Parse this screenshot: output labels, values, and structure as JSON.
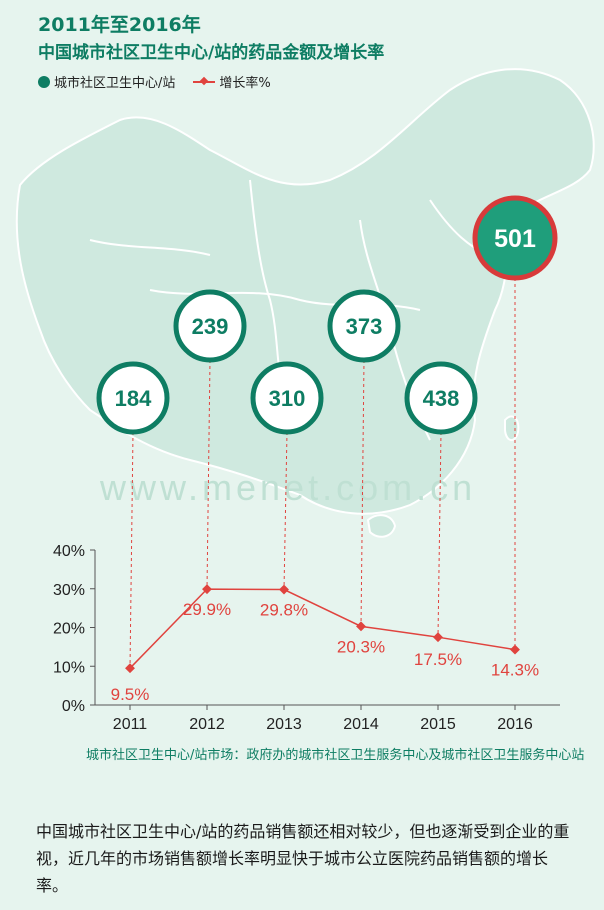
{
  "header": {
    "title": "2011年至2016年",
    "subtitle": "中国城市社区卫生中心/站的药品金额及增长率"
  },
  "legend": {
    "amount_label": "城市社区卫生中心/站",
    "growth_label": "增长率%"
  },
  "chart_data": {
    "type": "line",
    "categories": [
      "2011",
      "2012",
      "2013",
      "2014",
      "2015",
      "2016"
    ],
    "bubble_values": [
      184,
      239,
      310,
      373,
      438,
      501
    ],
    "series": [
      {
        "name": "城市社区卫生中心/站",
        "values": [
          184,
          239,
          310,
          373,
          438,
          501
        ]
      },
      {
        "name": "增长率%",
        "values": [
          9.5,
          29.9,
          29.8,
          20.3,
          17.5,
          14.3
        ]
      }
    ],
    "value_labels": [
      "9.5%",
      "29.9%",
      "29.8%",
      "20.3%",
      "17.5%",
      "14.3%"
    ],
    "y_ticks": [
      "0%",
      "10%",
      "20%",
      "30%",
      "40%"
    ],
    "ylim": [
      0,
      40
    ],
    "highlight_index": 5,
    "colors": {
      "primary": "#0e7d63",
      "line": "#e0433e",
      "highlight_fill": "#1f9e7b",
      "highlight_ring": "#d83a3a",
      "map_fill": "#cfe9df",
      "map_stroke": "#ffffff"
    }
  },
  "watermark": {
    "text": "www.menet.com.cn"
  },
  "note": {
    "text": "城市社区卫生中心/站市场：政府办的城市社区卫生服务中心及城市社区卫生服务中心站"
  },
  "body": {
    "text": "中国城市社区卫生中心/站的药品销售额还相对较少，但也逐渐受到企业的重视，近几年的市场销售额增长率明显快于城市公立医院药品销售额的增长率。"
  }
}
